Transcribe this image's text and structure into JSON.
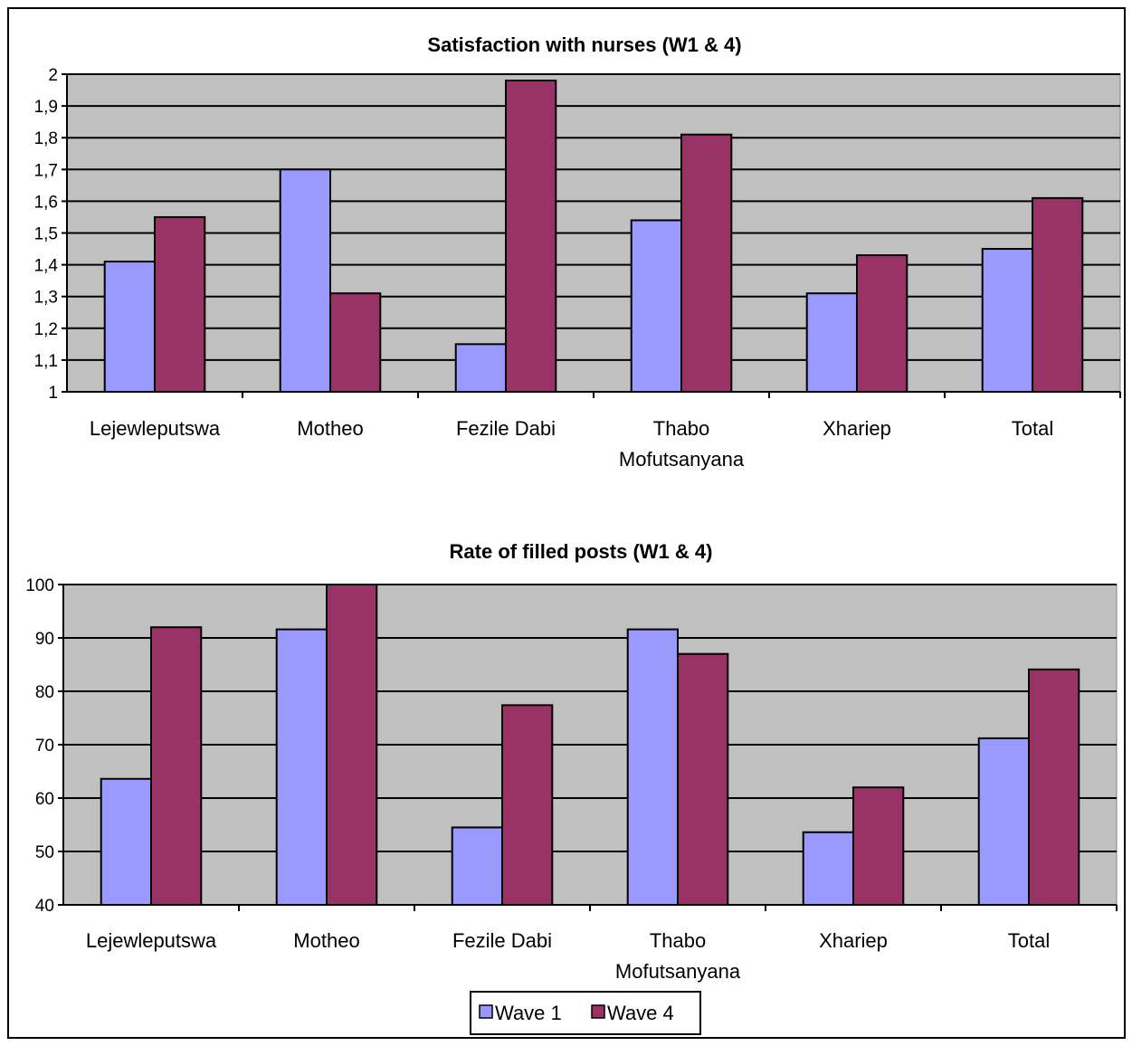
{
  "chart_data": [
    {
      "type": "bar",
      "title": "Satisfaction with nurses (W1 & 4)",
      "categories": [
        "Lejewleputswa",
        "Motheo",
        "Fezile Dabi",
        "Thabo Mofutsanyana",
        "Xhariep",
        "Total"
      ],
      "category_lines": [
        [
          "Lejewleputswa"
        ],
        [
          "Motheo"
        ],
        [
          "Fezile Dabi"
        ],
        [
          "Thabo",
          "Mofutsanyana"
        ],
        [
          "Xhariep"
        ],
        [
          "Total"
        ]
      ],
      "series": [
        {
          "name": "Wave 1",
          "values": [
            1.41,
            1.7,
            1.15,
            1.54,
            1.31,
            1.45
          ]
        },
        {
          "name": "Wave 4",
          "values": [
            1.55,
            1.31,
            1.98,
            1.81,
            1.43,
            1.61
          ]
        }
      ],
      "ylim": [
        1,
        2
      ],
      "yticks": [
        "1",
        "1,1",
        "1,2",
        "1,3",
        "1,4",
        "1,5",
        "1,6",
        "1,7",
        "1,8",
        "1,9",
        "2"
      ],
      "grid": true
    },
    {
      "type": "bar",
      "title": "Rate of filled posts (W1 & 4)",
      "categories": [
        "Lejewleputswa",
        "Motheo",
        "Fezile Dabi",
        "Thabo Mofutsanyana",
        "Xhariep",
        "Total"
      ],
      "category_lines": [
        [
          "Lejewleputswa"
        ],
        [
          "Motheo"
        ],
        [
          "Fezile Dabi"
        ],
        [
          "Thabo",
          "Mofutsanyana"
        ],
        [
          "Xhariep"
        ],
        [
          "Total"
        ]
      ],
      "series": [
        {
          "name": "Wave 1",
          "values": [
            63.6,
            91.6,
            54.5,
            91.6,
            53.6,
            71.2
          ]
        },
        {
          "name": "Wave 4",
          "values": [
            92.0,
            100.0,
            77.4,
            87.0,
            62.0,
            84.1
          ]
        }
      ],
      "ylim": [
        40,
        100
      ],
      "yticks": [
        "40",
        "50",
        "60",
        "70",
        "80",
        "90",
        "100"
      ],
      "grid": true,
      "legend_position": "bottom"
    }
  ],
  "legend": [
    {
      "label": "Wave 1",
      "color": "#9999ff"
    },
    {
      "label": "Wave 4",
      "color": "#993366"
    }
  ],
  "colors": {
    "plot_background": "#c0c0c0",
    "wave1": "#9999ff",
    "wave4": "#993366",
    "gridline": "#000000"
  }
}
